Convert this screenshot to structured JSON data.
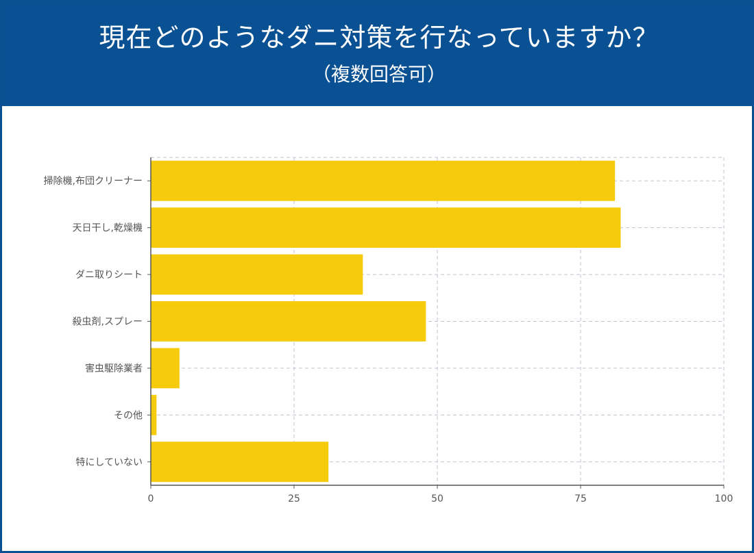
{
  "header": {
    "title": "現在どのようなダニ対策を行なっていますか？",
    "subtitle": "（複数回答可）"
  },
  "colors": {
    "banner": "#0a5193",
    "bar": "#f6cb0c",
    "grid": "#c9bdd2",
    "axis": "#555555"
  },
  "chart_data": {
    "type": "bar",
    "orientation": "horizontal",
    "categories": [
      "掃除機,布団クリーナー",
      "天日干し,乾燥機",
      "ダニ取りシート",
      "殺虫剤,スプレー",
      "害虫駆除業者",
      "その他",
      "特にしていない"
    ],
    "values": [
      81,
      82,
      37,
      48,
      5,
      1,
      31
    ],
    "xlim": [
      0,
      100
    ],
    "xticks": [
      0,
      25,
      50,
      75,
      100
    ],
    "grid": true,
    "legend": "none"
  }
}
